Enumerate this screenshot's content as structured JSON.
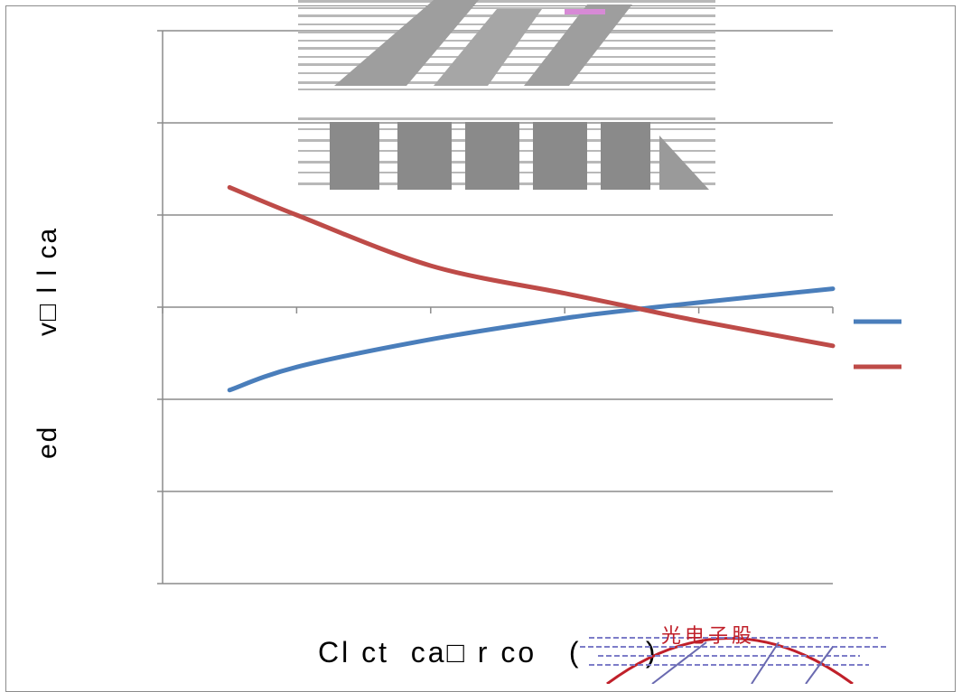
{
  "chart_data": {
    "type": "line",
    "title": "",
    "xlabel": "Cl ct  ca□ r co   (      )",
    "ylabel_upper": "v□ l l ca",
    "ylabel_lower": "ed",
    "grid": "horizontal",
    "legend_position": "right",
    "y_gridline_count": 7,
    "x_tick_count": 6,
    "series": [
      {
        "color": "#4a7ebb",
        "x": [
          0.5,
          1,
          2,
          3,
          3.5,
          4,
          5
        ],
        "values": [
          -0.9,
          -0.65,
          -0.35,
          -0.12,
          -0.03,
          0.05,
          0.2
        ]
      },
      {
        "color": "#be4b48",
        "x": [
          0.5,
          1,
          2,
          3,
          3.5,
          4,
          5
        ],
        "values": [
          1.3,
          1.0,
          0.45,
          0.15,
          0.0,
          -0.15,
          -0.42
        ]
      }
    ],
    "xlim": [
      0,
      5
    ],
    "ylim": [
      -3,
      3
    ]
  },
  "stamp": {
    "text": "光电子股"
  }
}
